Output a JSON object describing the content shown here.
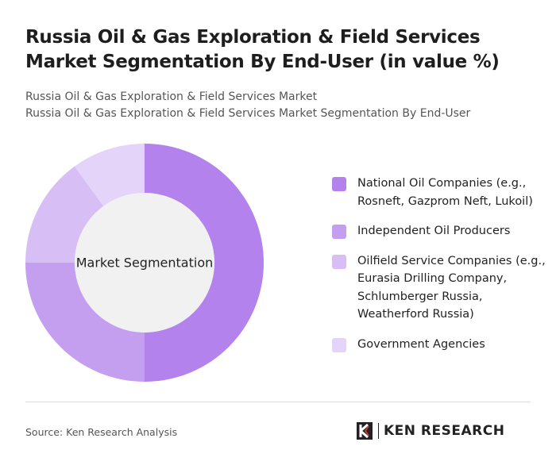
{
  "chart_data": {
    "type": "donut",
    "title": "Russia Oil & Gas Exploration & Field Services Market Segmentation By End-User (in value %)",
    "subtitles": [
      "Russia Oil & Gas Exploration & Field Services Market",
      "Russia Oil & Gas Exploration & Field Services Market Segmentation By End-User"
    ],
    "center_label": "Market Segmentation",
    "categories": [
      "National Oil Companies (e.g., Rosneft, Gazprom Neft, Lukoil)",
      "Independent Oil Producers",
      "Oilfield Service Companies (e.g., Eurasia Drilling Company, Schlumberger Russia, Weatherford Russia)",
      "Government Agencies"
    ],
    "values": [
      50,
      25,
      15,
      10
    ],
    "colors": [
      "#b482ec",
      "#c49ff0",
      "#d7bff5",
      "#e4d4f9"
    ],
    "source": "Source: Ken Research Analysis",
    "brand": "KEN RESEARCH"
  }
}
